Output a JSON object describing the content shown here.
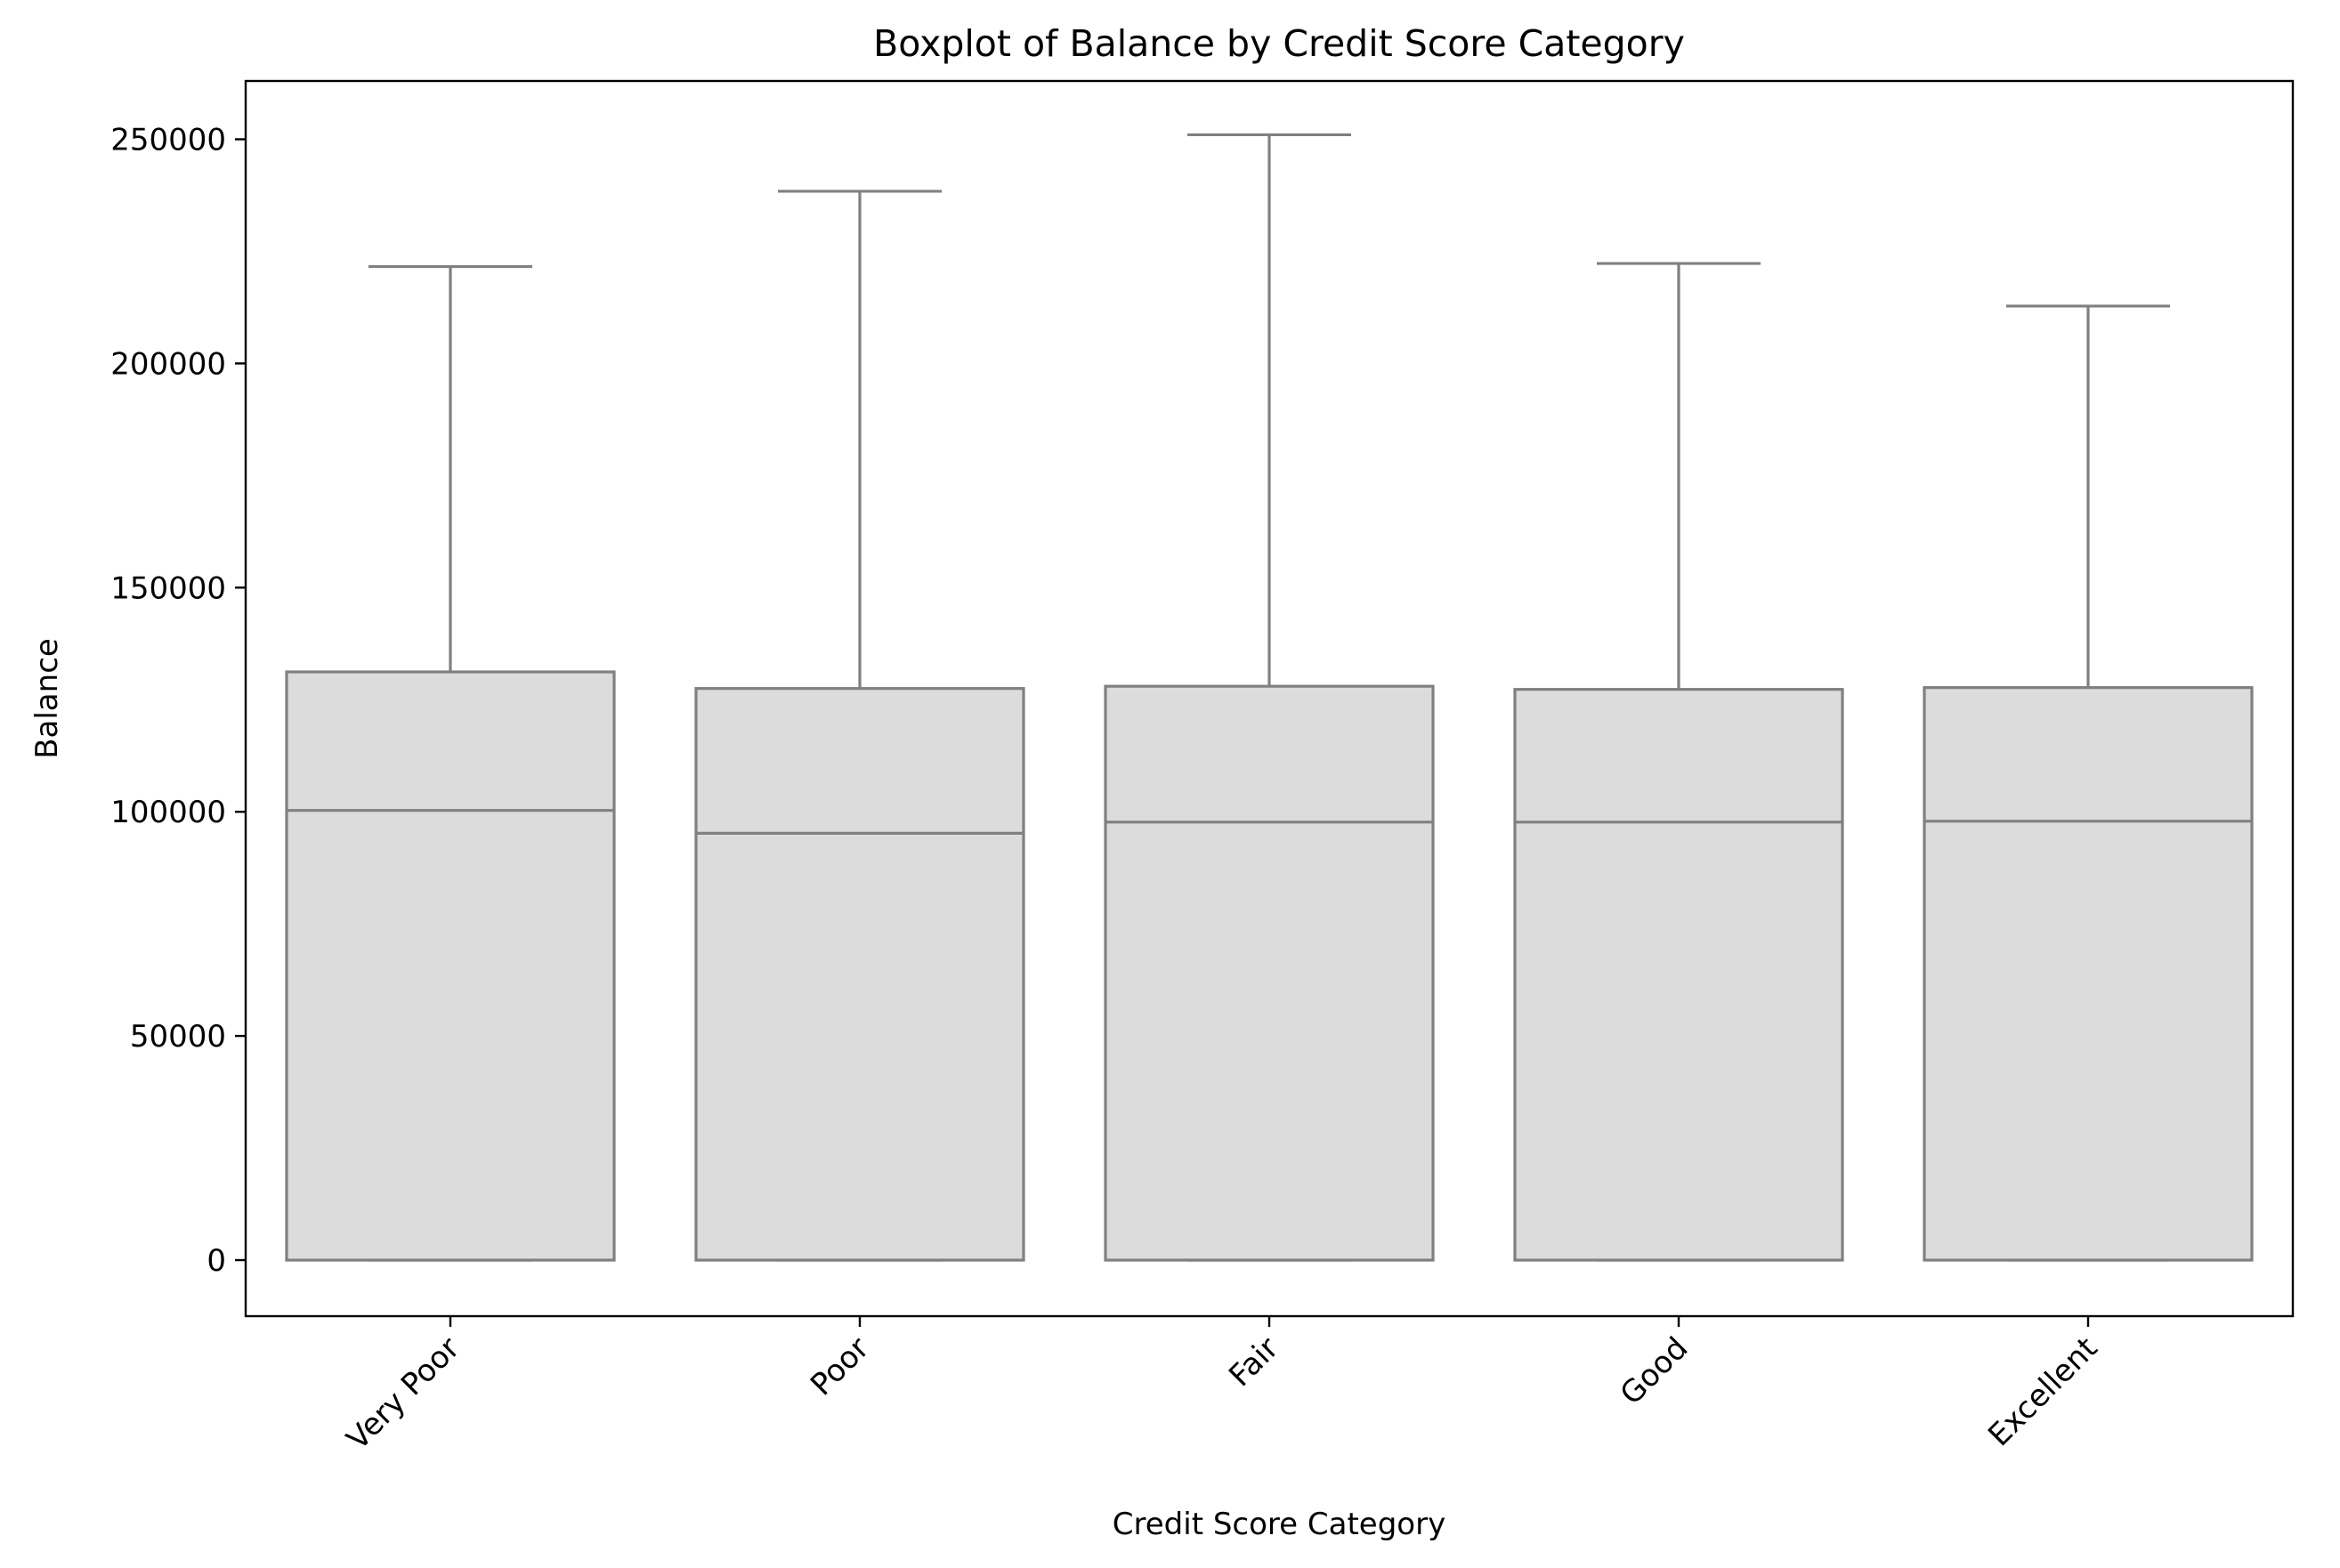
{
  "chart_data": {
    "type": "boxplot",
    "title": "Boxplot of Balance by Credit Score Category",
    "xlabel": "Credit Score Category",
    "ylabel": "Balance",
    "ylim": [
      -12500,
      263000
    ],
    "yticks": [
      0,
      50000,
      100000,
      150000,
      200000,
      250000
    ],
    "ytick_labels": [
      "0",
      "50000",
      "100000",
      "150000",
      "200000",
      "250000"
    ],
    "grid": false,
    "colors": {
      "box_fill": "#dcdcdc",
      "box_edge": "#808080"
    },
    "categories": [
      "Very Poor",
      "Poor",
      "Fair",
      "Good",
      "Excellent"
    ],
    "boxes": [
      {
        "min": 0,
        "q1": 0,
        "median": 100300,
        "q3": 131200,
        "max": 221600
      },
      {
        "min": 0,
        "q1": 0,
        "median": 95200,
        "q3": 127500,
        "max": 238400
      },
      {
        "min": 0,
        "q1": 0,
        "median": 97700,
        "q3": 128000,
        "max": 251000
      },
      {
        "min": 0,
        "q1": 0,
        "median": 97700,
        "q3": 127300,
        "max": 222300
      },
      {
        "min": 0,
        "q1": 0,
        "median": 97900,
        "q3": 127700,
        "max": 212800
      }
    ]
  }
}
